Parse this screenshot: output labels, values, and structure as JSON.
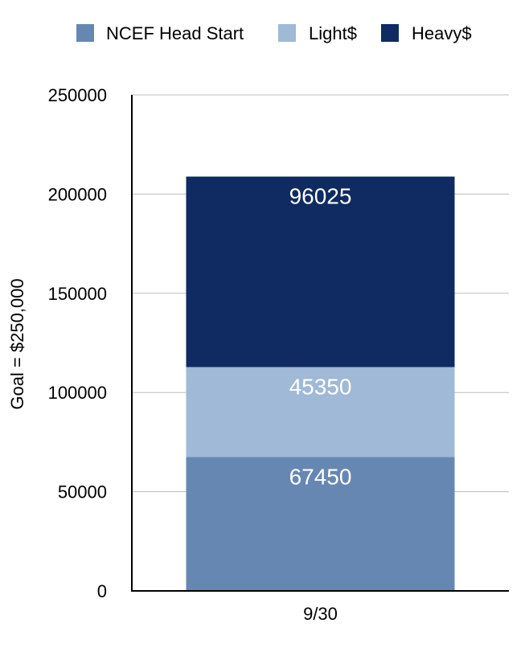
{
  "chart_data": {
    "type": "bar",
    "stacked": true,
    "categories": [
      "9/30"
    ],
    "series": [
      {
        "name": "NCEF Head Start",
        "values": [
          67450
        ],
        "color": "#6787b3"
      },
      {
        "name": "Light$",
        "values": [
          45350
        ],
        "color": "#9fb9d6"
      },
      {
        "name": "Heavy$",
        "values": [
          96025
        ],
        "color": "#0f2b61"
      }
    ],
    "xlabel": "",
    "ylabel": "Goal = $250,000",
    "ylim": [
      0,
      250000
    ],
    "yticks": [
      0,
      50000,
      100000,
      150000,
      200000,
      250000
    ],
    "ytick_labels": [
      "0",
      "50000",
      "100000",
      "150000",
      "200000",
      "250000"
    ],
    "data_labels": [
      "67450",
      "45350",
      "96025"
    ],
    "grid": true,
    "legend": "top"
  }
}
